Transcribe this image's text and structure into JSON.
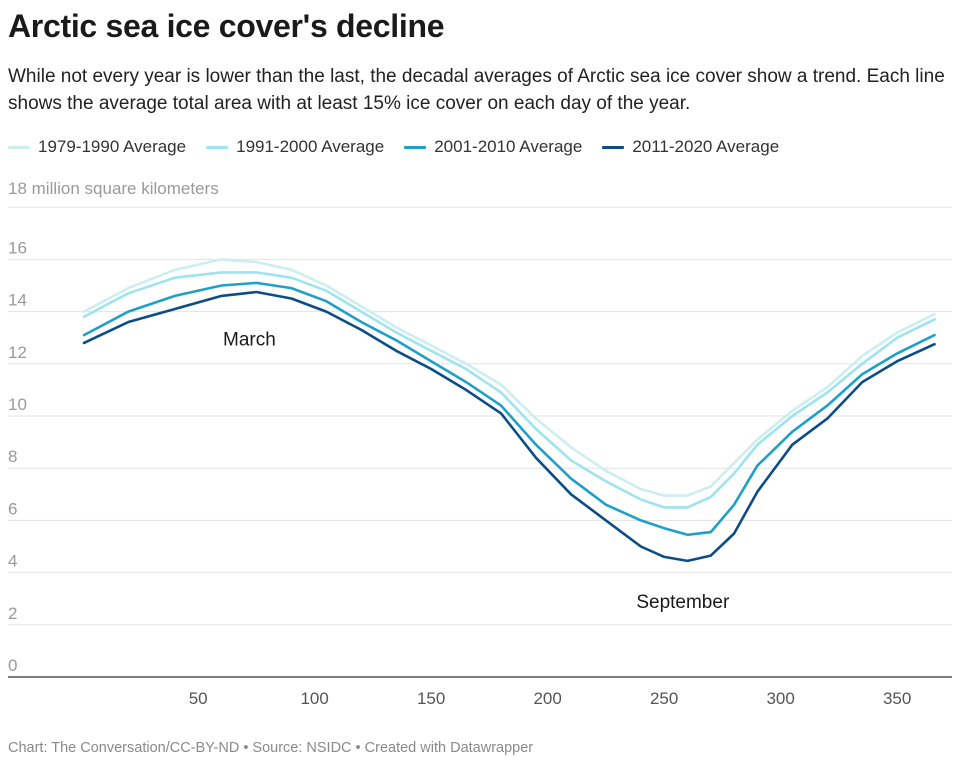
{
  "header": {
    "title": "Arctic sea ice cover's decline",
    "subtitle": "While not every year is lower than the last, the decadal averages of Arctic sea ice cover show a trend. Each line shows the average total area with at least 15% ice cover on each day of the year."
  },
  "footer": {
    "credit": "Chart: The Conversation/CC-BY-ND • Source: NSIDC • Created with Datawrapper"
  },
  "chart_data": {
    "type": "line",
    "title": "Arctic sea ice cover's decline",
    "ylabel": "18 million square kilometers",
    "xlabel": "",
    "xlim": [
      0,
      380
    ],
    "ylim": [
      0,
      18
    ],
    "x_ticks": [
      50,
      100,
      150,
      200,
      250,
      300,
      350
    ],
    "y_ticks": [
      0,
      2,
      4,
      6,
      8,
      10,
      12,
      14,
      16
    ],
    "y_tick_labels": [
      "0",
      "2",
      "4",
      "6",
      "8",
      "10",
      "12",
      "14",
      "16"
    ],
    "grid": true,
    "legend_position": "top-left",
    "x": [
      1,
      20,
      40,
      60,
      75,
      90,
      105,
      120,
      135,
      150,
      165,
      180,
      195,
      210,
      225,
      240,
      250,
      260,
      270,
      280,
      290,
      305,
      320,
      335,
      350,
      366
    ],
    "series": [
      {
        "name": "1979-1990 Average",
        "color": "#cdeef0",
        "values": [
          14.0,
          14.9,
          15.6,
          16.0,
          15.9,
          15.6,
          15.0,
          14.2,
          13.4,
          12.7,
          12.0,
          11.2,
          9.9,
          8.8,
          7.9,
          7.2,
          6.95,
          6.95,
          7.3,
          8.2,
          9.1,
          10.2,
          11.1,
          12.3,
          13.2,
          13.9
        ]
      },
      {
        "name": "1991-2000 Average",
        "color": "#9ee4ef",
        "values": [
          13.8,
          14.7,
          15.3,
          15.5,
          15.5,
          15.3,
          14.8,
          14.0,
          13.2,
          12.5,
          11.8,
          10.9,
          9.5,
          8.3,
          7.5,
          6.8,
          6.5,
          6.5,
          6.9,
          7.8,
          8.9,
          10.0,
          10.9,
          12.0,
          13.0,
          13.7
        ]
      },
      {
        "name": "2001-2010 Average",
        "color": "#1fa0c8",
        "values": [
          13.1,
          14.0,
          14.6,
          15.0,
          15.1,
          14.9,
          14.4,
          13.6,
          12.9,
          12.1,
          11.3,
          10.4,
          8.9,
          7.6,
          6.6,
          6.0,
          5.7,
          5.45,
          5.55,
          6.6,
          8.1,
          9.4,
          10.4,
          11.6,
          12.4,
          13.1
        ]
      },
      {
        "name": "2011-2020 Average",
        "color": "#0c4d87",
        "values": [
          12.8,
          13.6,
          14.1,
          14.6,
          14.75,
          14.5,
          14.0,
          13.3,
          12.5,
          11.8,
          11.0,
          10.1,
          8.4,
          7.0,
          6.0,
          5.0,
          4.6,
          4.45,
          4.65,
          5.5,
          7.1,
          8.9,
          9.9,
          11.3,
          12.1,
          12.75
        ]
      }
    ],
    "annotations": [
      {
        "text": "March",
        "x": 72,
        "y": 12.7
      },
      {
        "text": "September",
        "x": 258,
        "y": 2.65
      }
    ]
  }
}
